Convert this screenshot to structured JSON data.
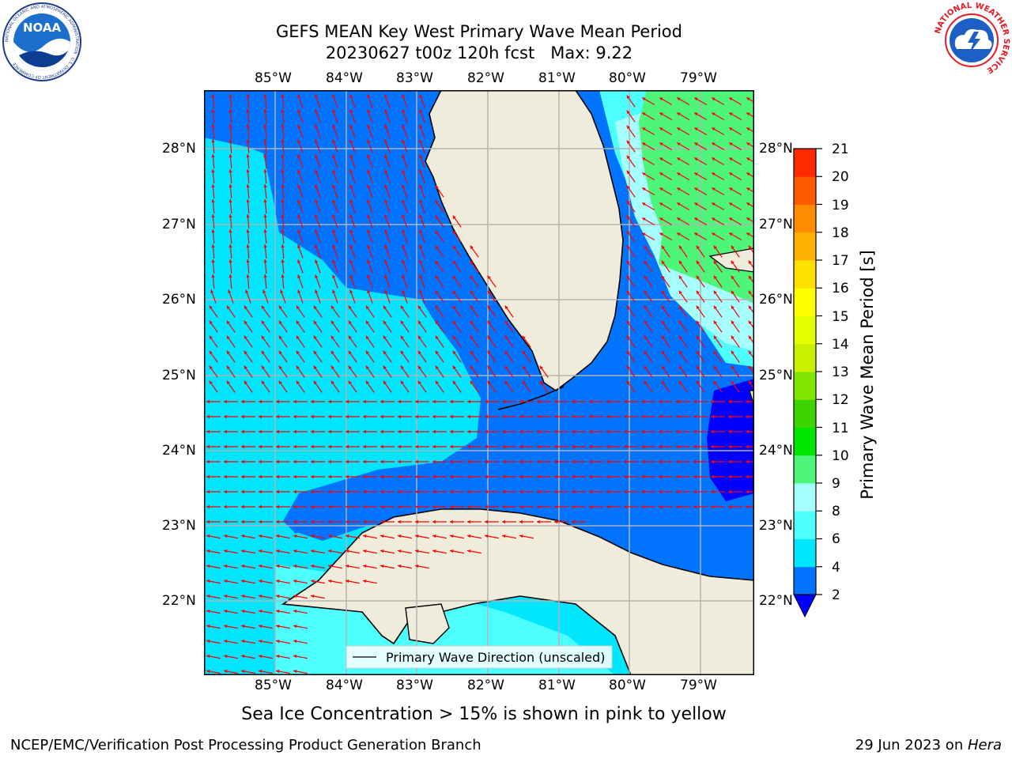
{
  "title": {
    "line1": "GEFS MEAN Key West Primary Wave Mean Period",
    "line2": "20230627 t00z 120h fcst   Max: 9.22"
  },
  "logos": {
    "noaa": {
      "icon": "noaa-logo",
      "text": "NOAA",
      "ring_text": "NATIONAL OCEANIC AND ATMOSPHERIC ADMINISTRATION · U.S. DEPARTMENT OF COMMERCE"
    },
    "nws": {
      "icon": "nws-logo",
      "ring_text": "NATIONAL WEATHER SERVICE"
    }
  },
  "map": {
    "lon_labels": [
      "85°W",
      "84°W",
      "83°W",
      "82°W",
      "81°W",
      "80°W",
      "79°W"
    ],
    "lat_labels": [
      "28°N",
      "27°N",
      "26°N",
      "25°N",
      "24°N",
      "23°N",
      "22°N"
    ],
    "legend": "Primary Wave Direction (unscaled)",
    "colors": {
      "land": "#efecdc",
      "coast": "#000000",
      "grid": "#b3b3b3",
      "arrow": "#ff0000"
    }
  },
  "colorbar": {
    "label": "Primary Wave Mean Period [s]",
    "ticks": [
      "2",
      "4",
      "6",
      "8",
      "9",
      "10",
      "11",
      "12",
      "13",
      "14",
      "15",
      "16",
      "17",
      "18",
      "19",
      "20",
      "21"
    ],
    "colors": [
      "#0073ff",
      "#00e6ff",
      "#4dffff",
      "#a6ffff",
      "#4df57a",
      "#00e600",
      "#3dd400",
      "#80e600",
      "#c8f000",
      "#e6ff00",
      "#ffff00",
      "#ffe000",
      "#ffb300",
      "#ff8c00",
      "#ff5a00",
      "#ff2a00"
    ],
    "under_color": "#0000ff"
  },
  "subtitle": "Sea Ice Concentration > 15% is shown in pink to yellow",
  "footer": {
    "left": "NCEP/EMC/Verification Post Processing Product Generation Branch",
    "right_date": "29 Jun 2023 on ",
    "right_host": "Hera"
  }
}
